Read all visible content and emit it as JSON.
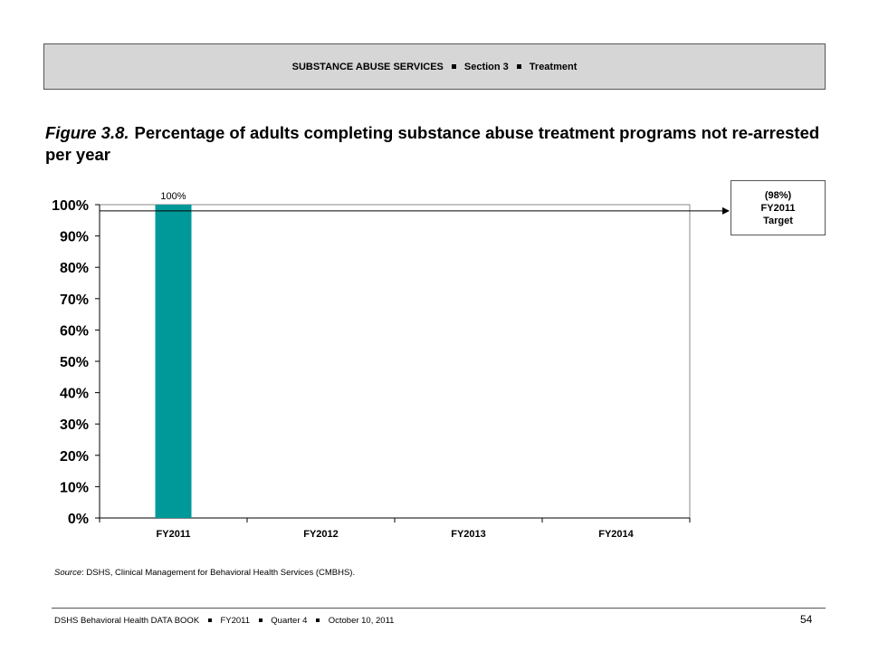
{
  "header": {
    "section_title": "SUBSTANCE ABUSE SERVICES",
    "section_number": "Section 3",
    "section_topic": "Treatment"
  },
  "figure": {
    "label": "Figure 3.8.",
    "title": "Percentage of adults completing substance abuse treatment programs not re-arrested per year"
  },
  "target_box": {
    "value": "(98%)",
    "year": "FY2011",
    "label": "Target"
  },
  "source": {
    "label": "Source",
    "text": ": DSHS, Clinical Management for Behavioral Health Services (CMBHS)."
  },
  "footer": {
    "book": "DSHS Behavioral Health DATA BOOK",
    "fiscal_year": "FY2011",
    "quarter": "Quarter 4",
    "date": "October 10, 2011",
    "page_number": "54"
  },
  "colors": {
    "bar": "#009999",
    "header_band": "#d6d6d6"
  },
  "chart_data": {
    "type": "bar",
    "title": "",
    "xlabel": "",
    "ylabel": "",
    "categories": [
      "FY2011",
      "FY2012",
      "FY2013",
      "FY2014"
    ],
    "series": [
      {
        "values": [
          100,
          null,
          null,
          null
        ]
      }
    ],
    "data_labels": [
      "100%",
      "",
      "",
      ""
    ],
    "ylim": [
      0,
      100
    ],
    "y_ticks": [
      0,
      10,
      20,
      30,
      40,
      50,
      60,
      70,
      80,
      90,
      100
    ],
    "y_tick_labels": [
      "0%",
      "10%",
      "20%",
      "30%",
      "40%",
      "50%",
      "60%",
      "70%",
      "80%",
      "90%",
      "100%"
    ],
    "target_line": 98,
    "grid": false,
    "legend": "none"
  }
}
